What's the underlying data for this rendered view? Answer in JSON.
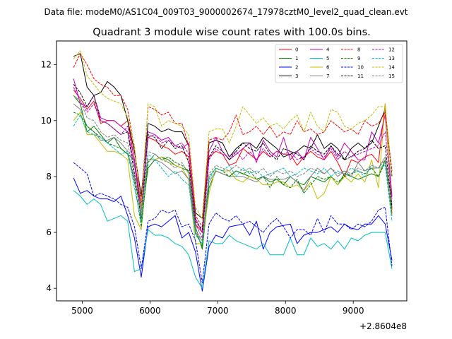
{
  "chart_data": {
    "type": "line",
    "suptitle": "Data file: modeM0/AS1C04_009T03_9000002674_17978cztM0_level2_quad_clean.evt",
    "title": "Quadrant 3 module wise count rates with 100.0s bins.",
    "xlabel": "",
    "ylabel": "",
    "x_offset_label": "+2.8604e8",
    "xlim": [
      4620,
      9790
    ],
    "ylim": [
      3.55,
      12.85
    ],
    "xticks": [
      5000,
      6000,
      7000,
      8000,
      9000
    ],
    "yticks": [
      4,
      6,
      8,
      10,
      12
    ],
    "x": [
      4871,
      4971,
      5071,
      5171,
      5271,
      5371,
      5471,
      5571,
      5671,
      5771,
      5871,
      5971,
      6071,
      6171,
      6271,
      6371,
      6471,
      6571,
      6671,
      6771,
      6871,
      6971,
      7071,
      7171,
      7271,
      7371,
      7471,
      7571,
      7671,
      7771,
      7871,
      7971,
      8071,
      8171,
      8271,
      8371,
      8471,
      8571,
      8671,
      8771,
      8871,
      8971,
      9071,
      9171,
      9271,
      9371,
      9471,
      9571
    ],
    "legend_position": "upper right",
    "series": [
      {
        "name": "0",
        "color": "#ff0000",
        "dash": "solid",
        "values": [
          11.1,
          10.8,
          10.4,
          10.7,
          9.9,
          10.0,
          10.0,
          9.8,
          10.0,
          8.6,
          6.9,
          9.4,
          9.3,
          9.1,
          9.0,
          8.8,
          8.9,
          8.7,
          6.3,
          6.0,
          8.7,
          8.9,
          8.8,
          8.4,
          8.5,
          9.0,
          8.8,
          8.6,
          8.9,
          8.7,
          8.9,
          8.8,
          8.8,
          8.4,
          8.7,
          8.9,
          8.7,
          8.6,
          8.9,
          8.5,
          8.0,
          8.6,
          8.5,
          8.7,
          8.8,
          8.5,
          10.6,
          6.8
        ]
      },
      {
        "name": "1",
        "color": "#008000",
        "dash": "solid",
        "values": [
          10.9,
          10.6,
          9.6,
          9.8,
          9.5,
          9.2,
          9.4,
          9.0,
          8.8,
          8.6,
          6.4,
          8.3,
          8.6,
          8.7,
          8.6,
          8.4,
          8.3,
          8.2,
          6.2,
          5.4,
          7.6,
          8.2,
          8.1,
          8.0,
          8.2,
          8.1,
          8.0,
          7.9,
          8.0,
          7.8,
          7.9,
          7.7,
          8.0,
          7.8,
          7.7,
          8.0,
          7.9,
          7.8,
          8.0,
          7.7,
          8.1,
          8.0,
          7.9,
          8.0,
          8.1,
          8.0,
          8.6,
          6.6
        ]
      },
      {
        "name": "2",
        "color": "#0000ff",
        "dash": "solid",
        "values": [
          7.95,
          7.4,
          7.5,
          7.3,
          7.2,
          7.2,
          7.1,
          7.3,
          6.6,
          5.8,
          4.4,
          6.2,
          6.3,
          6.2,
          6.4,
          6.6,
          5.8,
          6.0,
          5.3,
          3.9,
          5.5,
          5.9,
          5.8,
          6.2,
          6.25,
          6.3,
          5.9,
          6.4,
          5.4,
          6.0,
          6.2,
          6.25,
          6.3,
          5.6,
          5.9,
          6.0,
          6.0,
          6.1,
          6.2,
          6.0,
          6.3,
          6.15,
          6.1,
          6.3,
          6.3,
          6.6,
          6.3,
          5.0
        ]
      },
      {
        "name": "3",
        "color": "#000000",
        "dash": "solid",
        "values": [
          12.3,
          12.4,
          11.2,
          10.9,
          11.0,
          11.4,
          11.2,
          10.9,
          10.0,
          8.9,
          7.3,
          9.9,
          9.8,
          9.6,
          9.7,
          9.6,
          9.6,
          9.1,
          6.7,
          6.5,
          9.2,
          9.3,
          9.2,
          8.7,
          9.0,
          9.2,
          9.2,
          9.0,
          9.4,
          9.2,
          9.0,
          8.7,
          8.8,
          8.9,
          9.1,
          9.0,
          9.5,
          9.0,
          9.2,
          9.0,
          8.6,
          9.0,
          9.2,
          9.0,
          9.2,
          9.8,
          10.4,
          8.0
        ]
      },
      {
        "name": "4",
        "color": "#bf00bf",
        "dash": "solid",
        "values": [
          11.5,
          10.6,
          10.5,
          10.9,
          10.1,
          10.0,
          10.0,
          9.8,
          9.6,
          8.4,
          6.8,
          9.6,
          9.5,
          9.3,
          9.4,
          9.1,
          9.0,
          9.2,
          6.5,
          6.0,
          8.9,
          9.4,
          8.9,
          8.6,
          8.8,
          9.0,
          9.2,
          8.5,
          9.3,
          8.9,
          8.7,
          9.4,
          8.6,
          8.9,
          8.6,
          9.4,
          9.0,
          8.6,
          9.1,
          8.7,
          9.2,
          8.9,
          8.6,
          8.6,
          9.6,
          9.2,
          10.2,
          7.3
        ]
      },
      {
        "name": "5",
        "color": "#00bfbf",
        "dash": "solid",
        "values": [
          7.5,
          7.3,
          7.0,
          7.2,
          7.0,
          6.4,
          6.5,
          6.6,
          6.4,
          4.6,
          4.7,
          6.1,
          5.9,
          5.9,
          5.8,
          5.6,
          5.5,
          5.2,
          4.4,
          4.0,
          5.7,
          5.6,
          5.6,
          5.9,
          5.7,
          5.6,
          5.5,
          5.4,
          5.6,
          5.2,
          5.2,
          5.2,
          5.8,
          5.2,
          5.2,
          5.8,
          5.5,
          5.6,
          5.4,
          5.7,
          5.4,
          5.8,
          5.7,
          5.9,
          6.0,
          6.0,
          6.0,
          4.7
        ]
      },
      {
        "name": "6",
        "color": "#bfbf00",
        "dash": "solid",
        "values": [
          10.0,
          10.3,
          9.5,
          9.5,
          9.2,
          8.9,
          8.9,
          8.8,
          8.6,
          6.6,
          6.1,
          8.6,
          8.6,
          8.7,
          8.5,
          8.4,
          8.3,
          7.9,
          5.6,
          5.6,
          7.4,
          8.3,
          8.2,
          8.2,
          7.9,
          7.8,
          8.0,
          7.9,
          7.7,
          7.7,
          7.8,
          7.8,
          7.6,
          7.7,
          7.5,
          7.8,
          7.2,
          7.4,
          8.0,
          7.7,
          8.0,
          7.8,
          8.1,
          7.8,
          8.6,
          7.6,
          10.6,
          6.6
        ]
      },
      {
        "name": "7",
        "color": "#808080",
        "dash": "solid",
        "values": [
          10.6,
          10.4,
          9.8,
          9.6,
          9.3,
          9.3,
          9.4,
          9.2,
          8.9,
          7.9,
          6.8,
          8.6,
          8.6,
          8.5,
          8.3,
          8.1,
          8.2,
          7.9,
          6.0,
          5.7,
          7.8,
          8.2,
          8.1,
          8.0,
          8.0,
          8.0,
          7.9,
          7.8,
          8.0,
          7.9,
          7.9,
          7.9,
          8.0,
          7.8,
          7.5,
          8.0,
          8.3,
          8.1,
          8.3,
          8.0,
          8.2,
          8.0,
          8.5,
          8.2,
          8.3,
          8.3,
          8.7,
          7.0
        ]
      },
      {
        "name": "8",
        "color": "#ff0000",
        "dash": "dashed",
        "values": [
          11.9,
          12.4,
          12.0,
          11.5,
          11.3,
          11.2,
          10.9,
          10.9,
          10.4,
          9.0,
          7.1,
          10.5,
          10.4,
          10.2,
          10.3,
          9.9,
          9.9,
          9.1,
          6.6,
          6.2,
          9.3,
          9.4,
          9.3,
          9.6,
          10.2,
          9.5,
          9.6,
          9.8,
          9.5,
          9.8,
          9.4,
          9.6,
          9.5,
          10.0,
          9.6,
          9.7,
          9.5,
          9.6,
          10.0,
          9.8,
          9.6,
          9.7,
          9.5,
          10.0,
          9.8,
          9.9,
          10.3,
          8.2
        ]
      },
      {
        "name": "9",
        "color": "#008000",
        "dash": "dashed",
        "values": [
          10.3,
          10.2,
          9.8,
          9.6,
          9.4,
          9.2,
          9.1,
          9.0,
          8.8,
          7.8,
          6.2,
          8.5,
          8.8,
          8.6,
          8.7,
          8.5,
          8.4,
          8.2,
          6.0,
          5.5,
          8.0,
          8.3,
          8.2,
          8.0,
          8.2,
          8.1,
          8.2,
          7.9,
          8.0,
          7.6,
          8.0,
          7.7,
          7.6,
          7.9,
          7.4,
          7.7,
          8.0,
          7.9,
          8.0,
          7.8,
          8.0,
          8.1,
          8.2,
          8.1,
          8.3,
          8.0,
          8.5,
          6.7
        ]
      },
      {
        "name": "10",
        "color": "#0000ff",
        "dash": "dashed",
        "values": [
          8.5,
          8.3,
          8.1,
          7.3,
          7.4,
          7.3,
          7.2,
          7.0,
          6.9,
          6.2,
          4.7,
          6.4,
          6.5,
          6.8,
          6.7,
          6.8,
          6.2,
          6.3,
          5.7,
          4.2,
          6.3,
          6.7,
          6.5,
          6.4,
          6.6,
          6.3,
          6.4,
          6.2,
          6.0,
          6.3,
          6.5,
          6.2,
          5.8,
          6.1,
          6.1,
          5.9,
          6.5,
          6.0,
          6.6,
          6.3,
          6.3,
          6.1,
          6.3,
          6.2,
          6.4,
          6.8,
          6.9,
          4.8
        ]
      },
      {
        "name": "11",
        "color": "#000000",
        "dash": "dashed",
        "values": [
          11.3,
          11.0,
          10.5,
          10.9,
          10.0,
          9.9,
          9.7,
          9.5,
          9.6,
          8.1,
          6.5,
          9.5,
          9.4,
          9.0,
          9.3,
          9.0,
          9.1,
          8.5,
          6.4,
          6.1,
          8.7,
          9.1,
          8.9,
          8.6,
          8.9,
          9.2,
          9.0,
          8.9,
          9.2,
          8.8,
          8.6,
          9.0,
          8.9,
          8.8,
          8.6,
          9.1,
          8.9,
          8.8,
          9.1,
          8.8,
          8.6,
          8.7,
          8.9,
          9.0,
          9.3,
          9.0,
          9.1,
          6.9
        ]
      },
      {
        "name": "12",
        "color": "#bf00bf",
        "dash": "dashed",
        "values": [
          11.2,
          10.7,
          10.3,
          10.6,
          10.0,
          9.9,
          9.7,
          9.5,
          9.8,
          8.6,
          7.0,
          9.4,
          9.5,
          9.2,
          9.3,
          9.1,
          9.2,
          8.8,
          6.3,
          5.8,
          8.6,
          9.0,
          8.8,
          8.7,
          8.9,
          8.6,
          8.9,
          8.6,
          9.0,
          8.7,
          8.9,
          8.8,
          8.9,
          8.6,
          8.7,
          9.0,
          8.8,
          8.7,
          9.0,
          8.6,
          8.9,
          8.7,
          8.8,
          8.9,
          9.0,
          9.1,
          9.6,
          7.2
        ]
      },
      {
        "name": "13",
        "color": "#00bfbf",
        "dash": "dashed",
        "values": [
          9.8,
          10.2,
          9.6,
          9.5,
          9.4,
          9.2,
          9.0,
          8.8,
          8.9,
          7.6,
          6.4,
          8.8,
          8.6,
          8.3,
          8.0,
          8.2,
          7.9,
          7.7,
          5.9,
          5.6,
          7.9,
          8.3,
          8.2,
          8.4,
          8.0,
          8.3,
          8.1,
          8.2,
          8.0,
          8.1,
          8.2,
          8.3,
          8.0,
          8.1,
          8.3,
          8.2,
          8.1,
          8.3,
          8.0,
          8.2,
          8.1,
          8.3,
          8.2,
          8.0,
          8.4,
          8.3,
          8.4,
          6.4
        ]
      },
      {
        "name": "14",
        "color": "#bfbf00",
        "dash": "dashed",
        "values": [
          12.2,
          12.5,
          11.6,
          11.3,
          11.0,
          10.8,
          10.7,
          10.6,
          10.1,
          9.1,
          6.9,
          10.6,
          10.5,
          9.8,
          10.0,
          9.9,
          9.8,
          9.5,
          6.9,
          6.5,
          9.6,
          9.7,
          9.7,
          9.2,
          9.8,
          10.5,
          10.2,
          9.9,
          10.1,
          9.8,
          9.9,
          9.7,
          10.0,
          10.2,
          9.6,
          10.3,
          9.8,
          9.6,
          10.4,
          10.3,
          9.8,
          9.7,
          9.9,
          10.0,
          10.2,
          10.5,
          10.5,
          8.0
        ]
      },
      {
        "name": "15",
        "color": "#808080",
        "dash": "dashed",
        "values": [
          10.9,
          10.7,
          10.1,
          10.0,
          9.6,
          9.4,
          9.5,
          9.3,
          9.2,
          8.0,
          6.6,
          8.9,
          8.8,
          8.6,
          8.5,
          8.3,
          8.5,
          8.1,
          6.1,
          5.7,
          8.1,
          8.4,
          8.3,
          8.2,
          8.4,
          8.2,
          8.3,
          8.1,
          8.3,
          8.0,
          8.2,
          8.1,
          8.2,
          8.0,
          8.1,
          8.3,
          8.2,
          8.1,
          8.3,
          8.1,
          8.2,
          8.1,
          8.3,
          8.2,
          8.4,
          8.3,
          8.6,
          6.6
        ]
      }
    ]
  }
}
